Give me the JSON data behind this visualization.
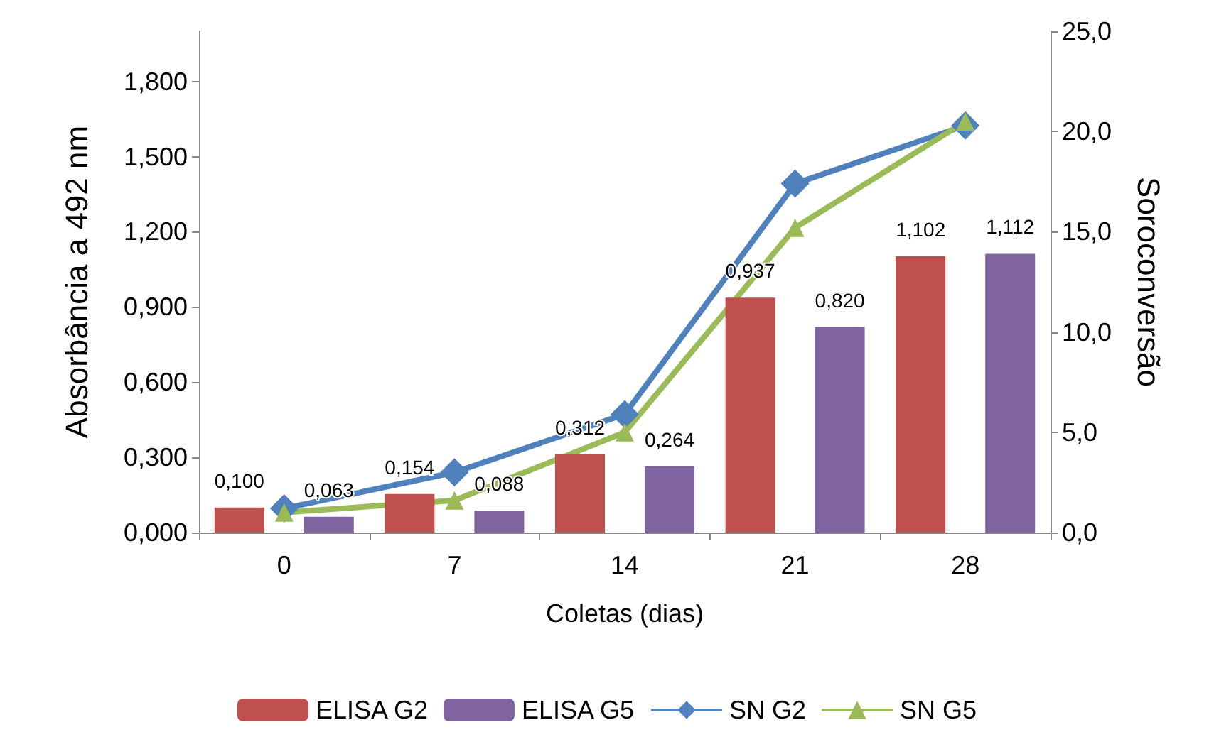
{
  "chart_data": {
    "type": "bar",
    "xlabel": "Coletas (dias)",
    "ylabel": "Absorbância a 492 nm",
    "y2label": "Soroconversão",
    "categories": [
      "0",
      "7",
      "14",
      "21",
      "28"
    ],
    "series": [
      {
        "name": "ELISA G2",
        "color": "#c0504d",
        "values": [
          0.1,
          0.154,
          0.312,
          0.937,
          1.102
        ],
        "value_labels": [
          "0,100",
          "0,154",
          "0,312",
          "0,937",
          "1,102"
        ]
      },
      {
        "name": "ELISA G5",
        "color": "#8064a2",
        "values": [
          0.063,
          0.088,
          0.264,
          0.82,
          1.112
        ],
        "value_labels": [
          "0,063",
          "0,088",
          "0,264",
          "0,820",
          "1,112"
        ]
      },
      {
        "name": "SN G2",
        "type": "line",
        "axis": "y2",
        "marker": "diamond",
        "color": "#4f81bd",
        "values": [
          1.2,
          3.0,
          5.9,
          17.4,
          20.3
        ]
      },
      {
        "name": "SN G5",
        "type": "line",
        "axis": "y2",
        "marker": "triangle",
        "color": "#9bbb59",
        "values": [
          1.0,
          1.6,
          5.0,
          15.2,
          20.5
        ]
      }
    ],
    "ylim": [
      0,
      2.0
    ],
    "yticks": [
      {
        "value": 0,
        "label": "0,000"
      },
      {
        "value": 0.3,
        "label": "0,300"
      },
      {
        "value": 0.6,
        "label": "0,600"
      },
      {
        "value": 0.9,
        "label": "0,900"
      },
      {
        "value": 1.2,
        "label": "1,200"
      },
      {
        "value": 1.5,
        "label": "1,500"
      },
      {
        "value": 1.8,
        "label": "1,800"
      }
    ],
    "y2lim": [
      0,
      25
    ],
    "y2ticks": [
      {
        "value": 0,
        "label": "0,0"
      },
      {
        "value": 5,
        "label": "5,0"
      },
      {
        "value": 10,
        "label": "10,0"
      },
      {
        "value": 15,
        "label": "15,0"
      },
      {
        "value": 20,
        "label": "20,0"
      },
      {
        "value": 25,
        "label": "25,0"
      }
    ],
    "legend": "bottom",
    "grid": false
  }
}
